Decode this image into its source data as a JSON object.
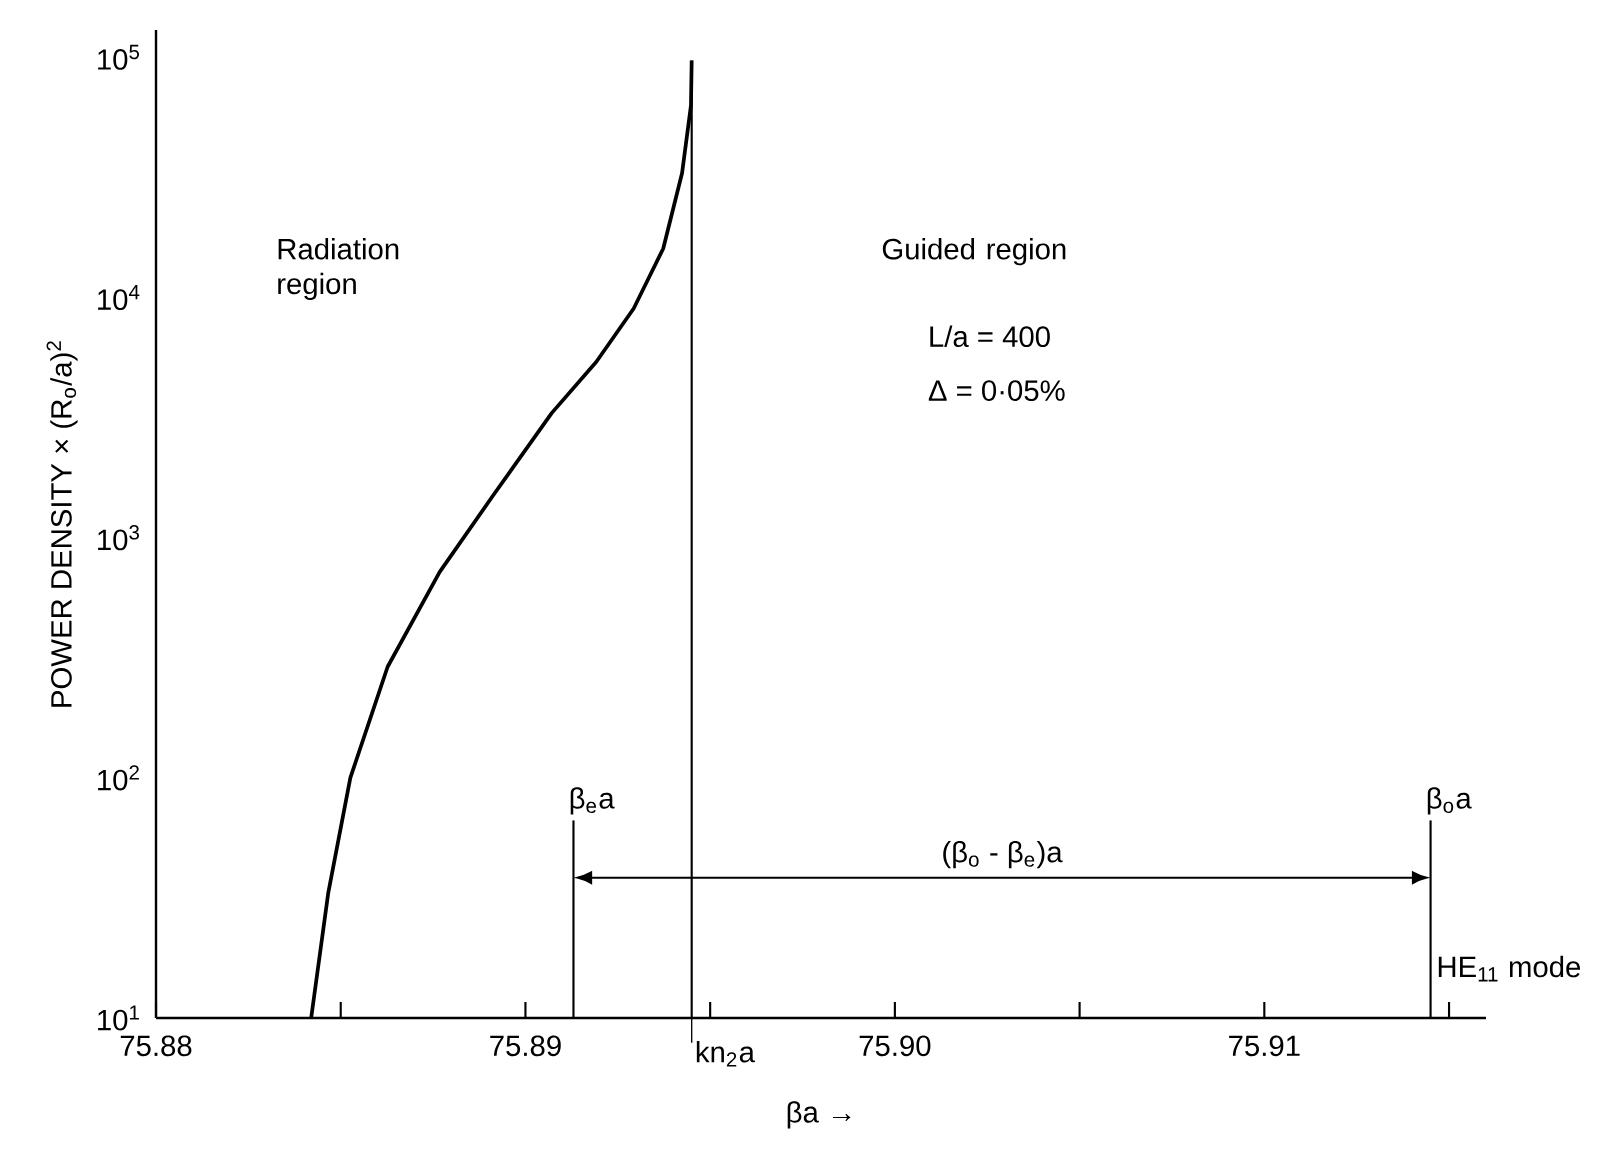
{
  "chart_data": {
    "type": "line",
    "xlabel": "βa →",
    "ylabel": "POWER DENSITY × (R$_{o}$/a)$^{2}$",
    "x": [
      75.8842,
      75.88466,
      75.88526,
      75.88627,
      75.88768,
      75.8891,
      75.89071,
      75.89192,
      75.89293,
      75.89373,
      75.89424,
      75.89448,
      75.8945
    ],
    "values": [
      10,
      33,
      100,
      290,
      720,
      1480,
      3300,
      5400,
      9000,
      16000,
      33000,
      63000,
      97000
    ],
    "color": "#000000",
    "marker": "none",
    "line_style": "solid",
    "log": "y",
    "grid": false,
    "xlim": [
      75.88,
      75.916
    ],
    "xticks": [
      75.88,
      {
        "value": 75.885,
        "label": null
      },
      75.89,
      {
        "value": 75.895,
        "label": null
      },
      {
        "value": 75.9,
        "label": "75.90"
      },
      {
        "value": 75.905,
        "label": null
      },
      75.91,
      {
        "value": 75.915,
        "label": null
      }
    ],
    "ylim": [
      10,
      130000
    ],
    "yticks": [
      {
        "value": 10,
        "label": "10$^{1}$"
      },
      {
        "value": 100,
        "label": "10$^{2}$"
      },
      {
        "value": 1000,
        "label": "10$^{3}$"
      },
      {
        "value": 10000,
        "label": "10$^{4}$"
      },
      {
        "value": 100000,
        "label": "10$^{5}$"
      }
    ],
    "ref_lines": [
      {
        "axis": "x",
        "value": 75.8913,
        "label": "β$_{e}$a"
      },
      {
        "axis": "x",
        "value": 75.8945,
        "label": "kn$_{2}$a"
      },
      {
        "axis": "x",
        "value": 75.9145,
        "label": "β$_{o}$a"
      }
    ],
    "annotations": [
      "Radiation region",
      "Guided region",
      "L/a = 400",
      "Δ  = 0·05%",
      "(β$_{o}$ - β$_{e}$)a",
      "HE$_{11}$ mode"
    ]
  }
}
